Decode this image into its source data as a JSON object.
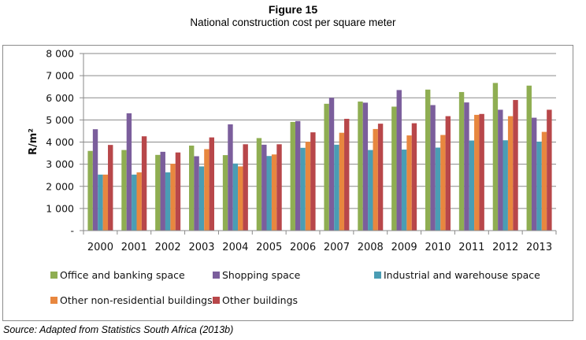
{
  "figure": {
    "title": "Figure 15",
    "subtitle": "National construction cost per square meter",
    "source": "Source: Adapted from Statistics South Africa (2013b)"
  },
  "chart_data": {
    "type": "bar",
    "title": "National construction cost per square meter",
    "xlabel": "",
    "ylabel": "R/m²",
    "ylim": [
      0,
      8000
    ],
    "yticks": [
      0,
      1000,
      2000,
      3000,
      4000,
      5000,
      6000,
      7000,
      8000
    ],
    "ytick_labels": [
      "-",
      "1 000",
      "2 000",
      "3 000",
      "4 000",
      "5 000",
      "6 000",
      "7 000",
      "8 000"
    ],
    "grid": true,
    "legend_position": "bottom",
    "categories": [
      "2000",
      "2001",
      "2002",
      "2003",
      "2004",
      "2005",
      "2006",
      "2007",
      "2008",
      "2009",
      "2010",
      "2011",
      "2012",
      "2013"
    ],
    "series": [
      {
        "name": "Office and banking space",
        "color": "#8FAE52",
        "values": [
          3600,
          3640,
          3420,
          3840,
          3410,
          4180,
          4910,
          5730,
          5830,
          5600,
          6370,
          6260,
          6670,
          6550
        ]
      },
      {
        "name": "Shopping space",
        "color": "#7B5E9C",
        "values": [
          4580,
          5300,
          3560,
          3360,
          4800,
          3880,
          4950,
          6000,
          5780,
          6350,
          5670,
          5790,
          5460,
          5100
        ]
      },
      {
        "name": "Industrial and warehouse space",
        "color": "#4A9DB4",
        "values": [
          2530,
          2530,
          2630,
          2900,
          3030,
          3370,
          3740,
          3880,
          3640,
          3660,
          3750,
          4070,
          4080,
          4020
        ]
      },
      {
        "name": "Other non-residential buildings",
        "color": "#E8873F",
        "values": [
          2530,
          2630,
          3020,
          3680,
          2900,
          3440,
          4010,
          4420,
          4590,
          4300,
          4320,
          5230,
          5170,
          4460
        ]
      },
      {
        "name": "Other buildings",
        "color": "#B8474A",
        "values": [
          3870,
          4260,
          3530,
          4210,
          3900,
          3900,
          4440,
          5050,
          4830,
          4850,
          5170,
          5270,
          5900,
          5460
        ]
      }
    ]
  }
}
